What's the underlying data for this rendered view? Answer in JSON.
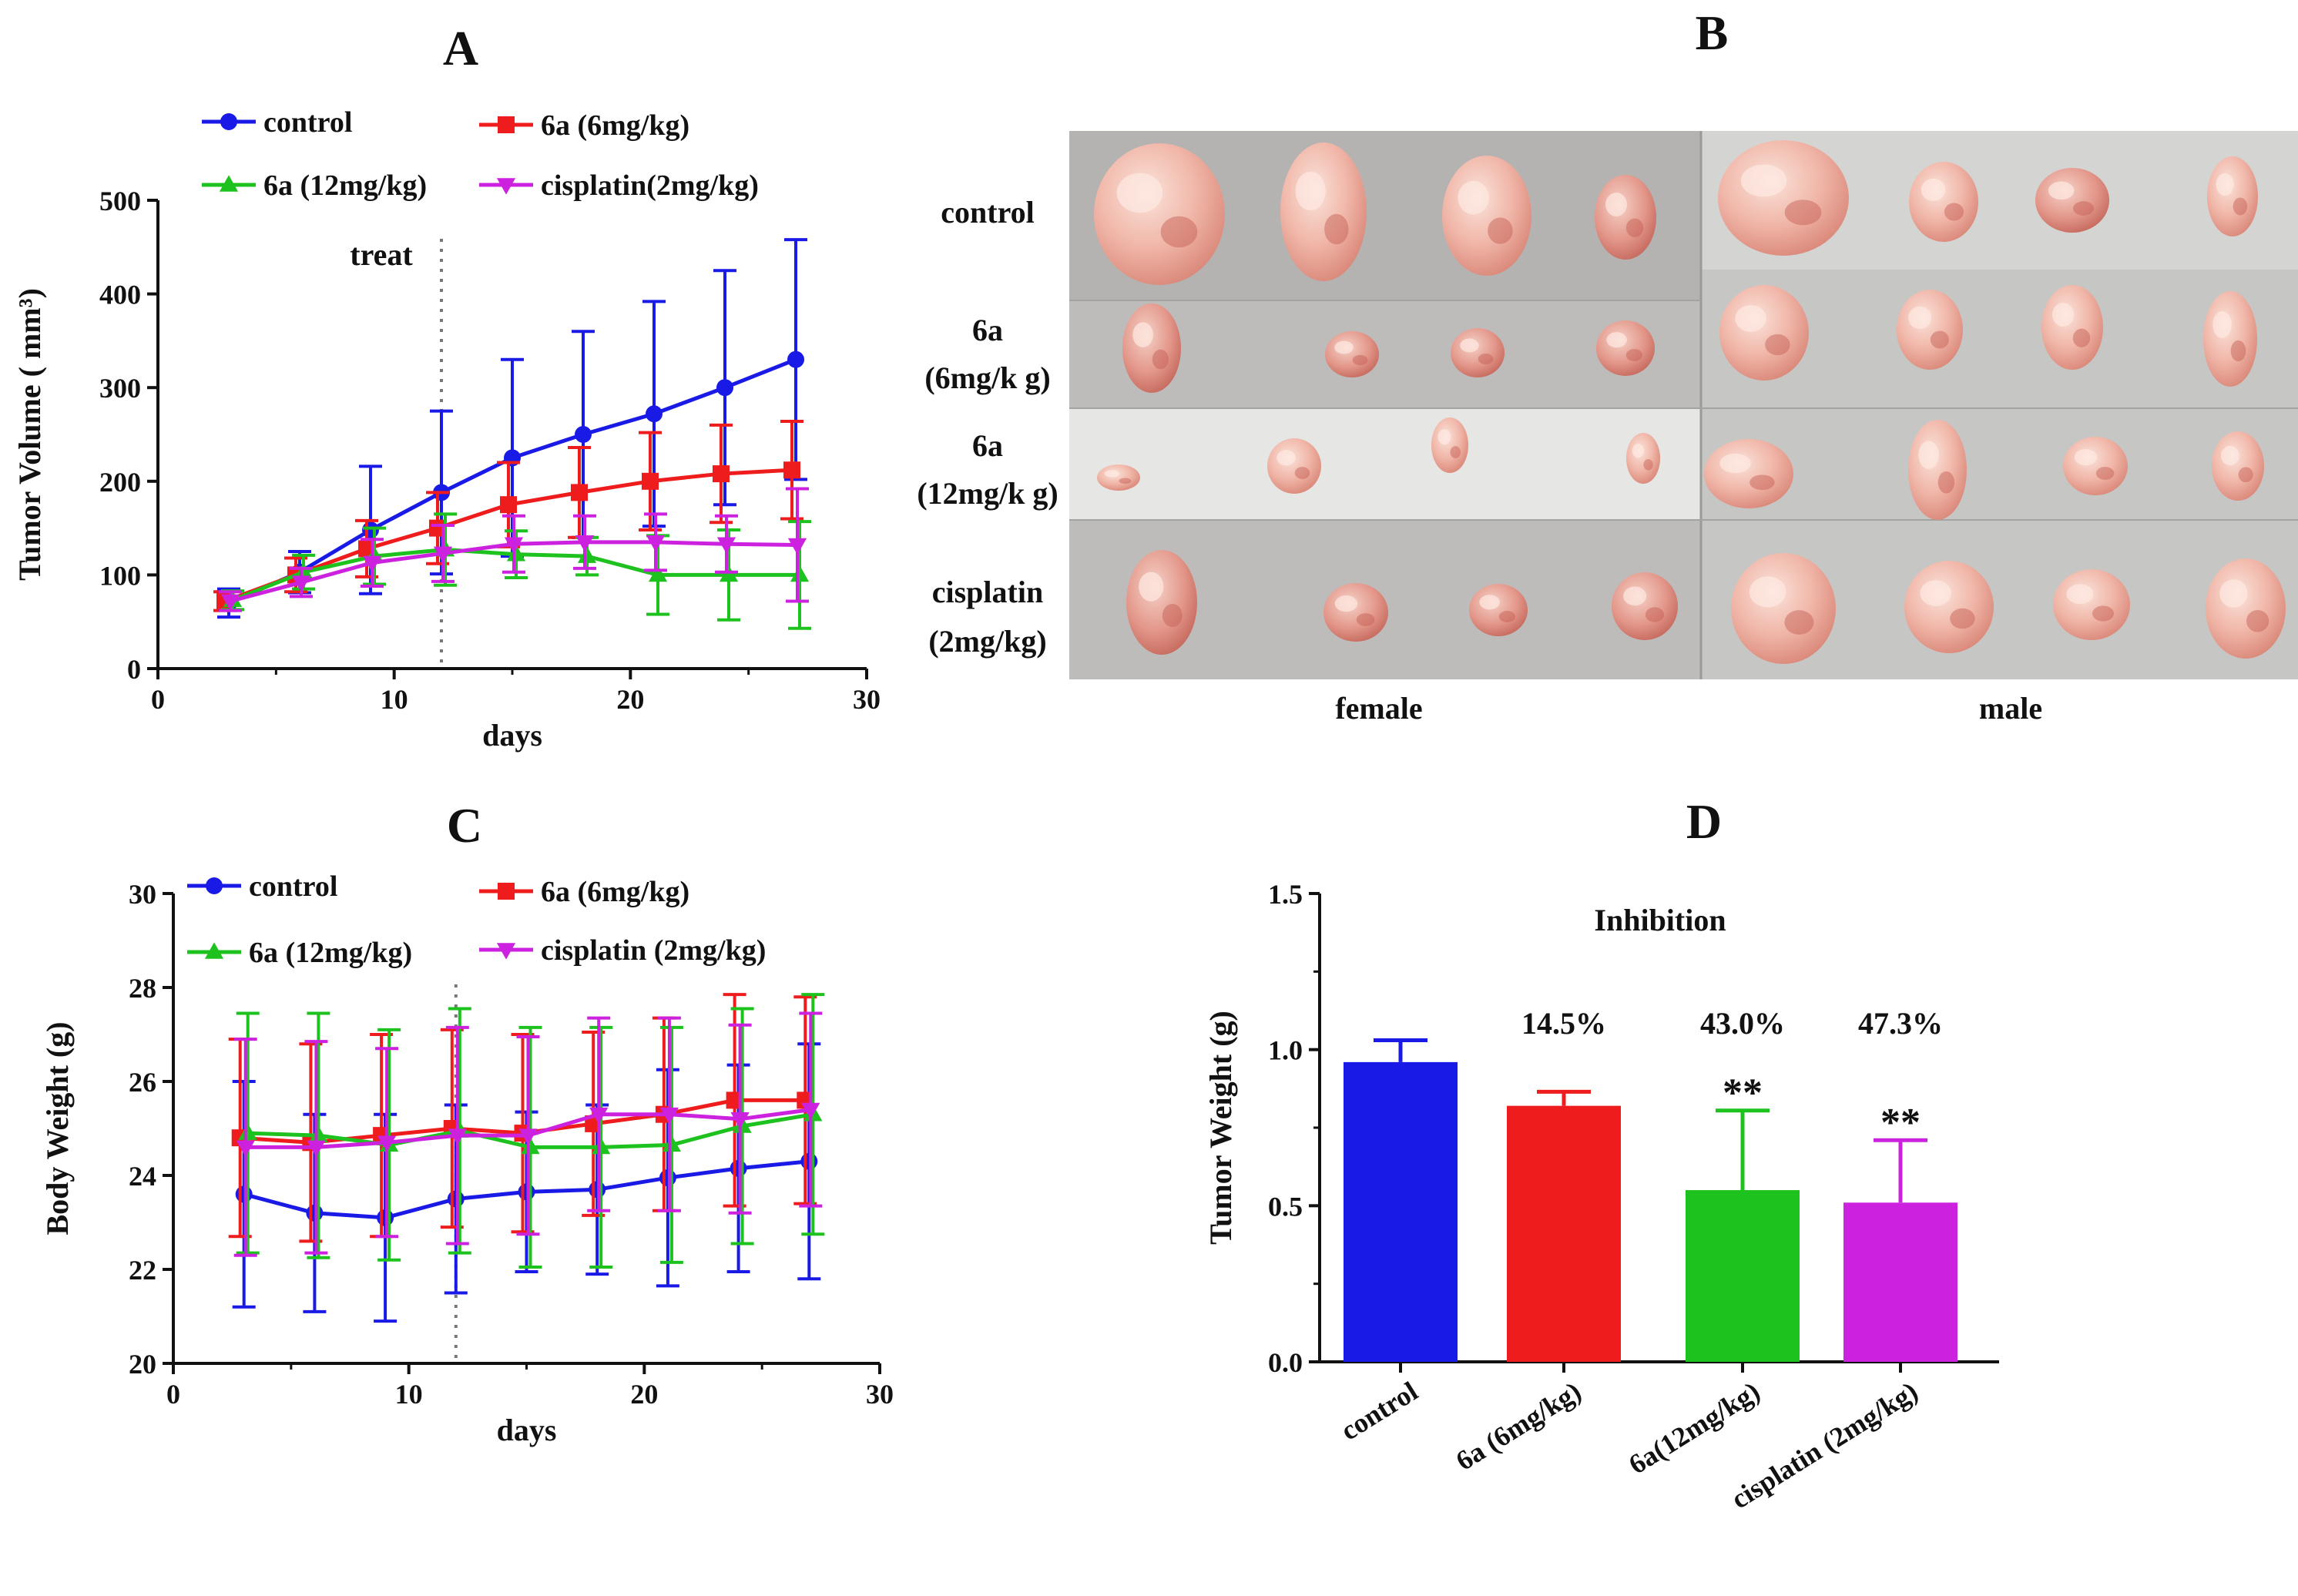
{
  "colors": {
    "control": "#1a1ae6",
    "dose6": "#ee1c1c",
    "dose12": "#1ec21e",
    "cisplatin": "#cc22e0",
    "axis": "#111111",
    "treat_line": "#777777"
  },
  "chart_data": [
    {
      "panel": "A",
      "type": "line",
      "xlabel": "days",
      "ylabel": "Tumor Volume ( mm³)",
      "xlim": [
        0,
        30
      ],
      "ylim": [
        0,
        500
      ],
      "xticks": [
        "0",
        "10",
        "20",
        "30"
      ],
      "yticks": [
        "0",
        "100",
        "200",
        "300",
        "400",
        "500"
      ],
      "annotation": "treat",
      "treat_day": 12,
      "legend": [
        "control",
        "6a (6mg/kg)",
        "6a (12mg/kg)",
        "cisplatin(2mg/kg)"
      ],
      "x": [
        3,
        6,
        9,
        12,
        15,
        18,
        21,
        24,
        27
      ],
      "series": [
        {
          "name": "control",
          "color": "#1a1ae6",
          "marker": "circle",
          "values": [
            70,
            103,
            148,
            188,
            225,
            250,
            272,
            300,
            330
          ],
          "errors": [
            15,
            22,
            68,
            87,
            105,
            110,
            120,
            125,
            128
          ]
        },
        {
          "name": "6a (6mg/kg)",
          "color": "#ee1c1c",
          "marker": "square",
          "values": [
            72,
            100,
            128,
            150,
            175,
            188,
            200,
            208,
            212
          ],
          "errors": [
            10,
            18,
            30,
            38,
            45,
            48,
            52,
            52,
            52
          ]
        },
        {
          "name": "6a (12mg/kg)",
          "color": "#1ec21e",
          "marker": "triangle-up",
          "values": [
            73,
            103,
            120,
            127,
            122,
            120,
            100,
            100,
            100
          ],
          "errors": [
            10,
            18,
            30,
            38,
            25,
            20,
            42,
            48,
            57
          ]
        },
        {
          "name": "cisplatin(2mg/kg)",
          "color": "#cc22e0",
          "marker": "triangle-down",
          "values": [
            72,
            92,
            113,
            123,
            133,
            135,
            135,
            133,
            132
          ],
          "errors": [
            10,
            15,
            25,
            30,
            30,
            28,
            30,
            30,
            60
          ]
        }
      ]
    },
    {
      "panel": "C",
      "type": "line",
      "xlabel": "days",
      "ylabel": "Body Weight (g)",
      "xlim": [
        0,
        30
      ],
      "ylim": [
        20,
        30
      ],
      "xticks": [
        "0",
        "10",
        "20",
        "30"
      ],
      "yticks": [
        "20",
        "22",
        "24",
        "26",
        "28",
        "30"
      ],
      "treat_day": 12,
      "legend": [
        "control",
        "6a (6mg/kg)",
        "6a (12mg/kg)",
        "cisplatin (2mg/kg)"
      ],
      "x": [
        3,
        6,
        9,
        12,
        15,
        18,
        21,
        24,
        27
      ],
      "series": [
        {
          "name": "control",
          "color": "#1a1ae6",
          "marker": "circle",
          "values": [
            23.6,
            23.2,
            23.1,
            23.5,
            23.65,
            23.7,
            23.95,
            24.15,
            24.3
          ],
          "errors": [
            2.4,
            2.1,
            2.2,
            2.0,
            1.7,
            1.8,
            2.3,
            2.2,
            2.5
          ]
        },
        {
          "name": "6a (6mg/kg)",
          "color": "#ee1c1c",
          "marker": "square",
          "values": [
            24.8,
            24.7,
            24.85,
            25.0,
            24.9,
            25.1,
            25.3,
            25.6,
            25.6
          ],
          "errors": [
            2.1,
            2.1,
            2.15,
            2.1,
            2.1,
            1.95,
            2.05,
            2.25,
            2.2
          ]
        },
        {
          "name": "6a (12mg/kg)",
          "color": "#1ec21e",
          "marker": "triangle-up",
          "values": [
            24.9,
            24.85,
            24.65,
            24.95,
            24.6,
            24.6,
            24.65,
            25.05,
            25.3
          ],
          "errors": [
            2.55,
            2.6,
            2.45,
            2.6,
            2.55,
            2.55,
            2.5,
            2.5,
            2.55
          ]
        },
        {
          "name": "cisplatin (2mg/kg)",
          "color": "#cc22e0",
          "marker": "triangle-down",
          "values": [
            24.6,
            24.6,
            24.7,
            24.85,
            24.85,
            25.3,
            25.3,
            25.2,
            25.4
          ],
          "errors": [
            2.3,
            2.25,
            2.0,
            2.3,
            2.1,
            2.05,
            2.05,
            2.0,
            2.05
          ]
        }
      ]
    },
    {
      "panel": "D",
      "type": "bar",
      "title": "Inhibition",
      "ylabel": "Tumor Weight (g)",
      "ylim": [
        0,
        1.5
      ],
      "yticks": [
        "0.0",
        "0.5",
        "1.0",
        "1.5"
      ],
      "categories": [
        "control",
        "6a (6mg/kg)",
        "6a(12mg/kg)",
        "cisplatin (2mg/kg)"
      ],
      "values": [
        0.96,
        0.82,
        0.55,
        0.51
      ],
      "errors": [
        0.07,
        0.045,
        0.255,
        0.2
      ],
      "colors": [
        "#1a1ae6",
        "#ee1c1c",
        "#1ec21e",
        "#cc22e0"
      ],
      "inhibition_labels": [
        "",
        "14.5%",
        "43.0%",
        "47.3%"
      ],
      "significance": [
        "",
        "",
        "**",
        "**"
      ]
    }
  ],
  "panel_b": {
    "letter": "B",
    "rows": [
      {
        "lines": [
          "control"
        ]
      },
      {
        "lines": [
          "6a",
          "(6mg/k g)"
        ]
      },
      {
        "lines": [
          "6a",
          "(12mg/k g)"
        ]
      },
      {
        "lines": [
          "cisplatin",
          "(2mg/kg)"
        ]
      }
    ],
    "columns": [
      "female",
      "male"
    ]
  },
  "panel_letters": {
    "a": "A",
    "c": "C",
    "d": "D"
  }
}
